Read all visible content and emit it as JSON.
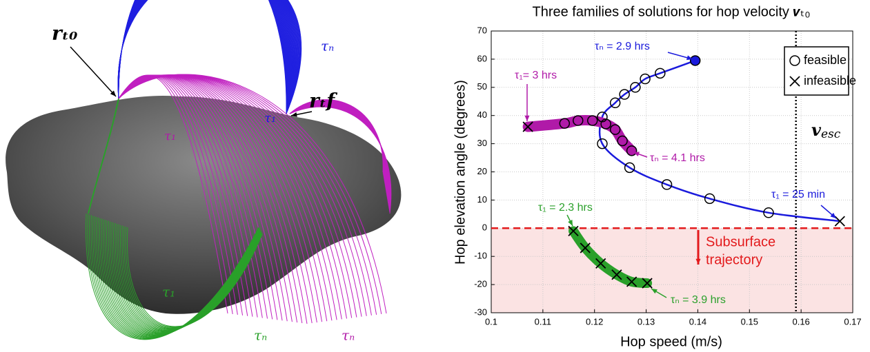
{
  "illustration": {
    "labels": [
      {
        "text": "𝒓ₜ₀",
        "color": "#000000"
      },
      {
        "text": "𝒓ₜf",
        "color": "#000000"
      },
      {
        "text": "τₙ",
        "color": "#1a1adc"
      },
      {
        "text": "τ₁",
        "color": "#1a1adc"
      },
      {
        "text": "τ₁",
        "color": "#b01aa8"
      },
      {
        "text": "τ₁",
        "color": "#2aa02a"
      },
      {
        "text": "τₙ",
        "color": "#2aa02a"
      },
      {
        "text": "τₙ",
        "color": "#b01aa8"
      }
    ]
  },
  "chart_data": {
    "type": "line",
    "title": "Three families of solutions for hop velocity 𝒗ₜ₀",
    "x_label": "Hop speed (m/s)",
    "y_label": "Hop elevation angle (degrees)",
    "xlim": [
      0.1,
      0.17
    ],
    "xticks": [
      0.1,
      0.11,
      0.12,
      0.13,
      0.14,
      0.15,
      0.16,
      0.17
    ],
    "ylim": [
      -30,
      70
    ],
    "yticks": [
      -30,
      -20,
      -10,
      0,
      10,
      20,
      30,
      40,
      50,
      60,
      70
    ],
    "grid": true,
    "series": [
      {
        "color": "#1a1adc",
        "line_width": 2.5,
        "x": [
          0.1395,
          0.1327,
          0.1298,
          0.1279,
          0.1258,
          0.124,
          0.1215,
          0.1215,
          0.1268,
          0.134,
          0.1423,
          0.1537,
          0.1675
        ],
        "values": [
          59.5,
          55,
          53,
          50,
          47.5,
          44.5,
          39.5,
          30,
          21.5,
          15.5,
          10.5,
          5.5,
          2.5
        ],
        "markers": [
          "filled",
          "o",
          "o",
          "o",
          "o",
          "o",
          "o",
          "o",
          "o",
          "o",
          "o",
          "o",
          "x"
        ]
      },
      {
        "color": "#b01aa8",
        "line_width": 15,
        "x": [
          0.1071,
          0.1142,
          0.1168,
          0.1196,
          0.1222,
          0.124,
          0.1254,
          0.1272
        ],
        "values": [
          36,
          37.2,
          38.2,
          38.2,
          37,
          35,
          31,
          27.5
        ],
        "markers": [
          "x",
          "o",
          "o",
          "o",
          "o",
          "o",
          "o",
          "o"
        ]
      },
      {
        "color": "#2aa02a",
        "line_width": 14,
        "x": [
          0.1159,
          0.1182,
          0.1212,
          0.1243,
          0.1272,
          0.1302
        ],
        "values": [
          -1,
          -7,
          -12.5,
          -16.5,
          -19,
          -19.5
        ],
        "markers": [
          "x",
          "x",
          "x",
          "x",
          "x",
          "x"
        ]
      }
    ],
    "legend": {
      "entries": [
        "feasible",
        "infeasible"
      ],
      "position": "upper right"
    },
    "annotations": [
      {
        "text": "τₙ = 2.9 hrs",
        "color": "#1a1adc"
      },
      {
        "text": "τ₁= 3 hrs",
        "color": "#b01aa8"
      },
      {
        "text": "τₙ = 4.1 hrs",
        "color": "#b01aa8"
      },
      {
        "text": "τ₁ = 25 min",
        "color": "#1a1adc"
      },
      {
        "text": "τ₁ = 2.3 hrs",
        "color": "#2aa02a"
      },
      {
        "text": "τₙ = 3.9 hrs",
        "color": "#2aa02a"
      }
    ],
    "escape_line": {
      "x": 0.159,
      "symbol": "𝒗",
      "subscript": "esc",
      "color": "#000000"
    },
    "subsurface": {
      "y": 0,
      "color": "#e31a1c",
      "shade": "#fbe3e3",
      "label": [
        "Subsurface",
        "trajectory"
      ]
    }
  }
}
